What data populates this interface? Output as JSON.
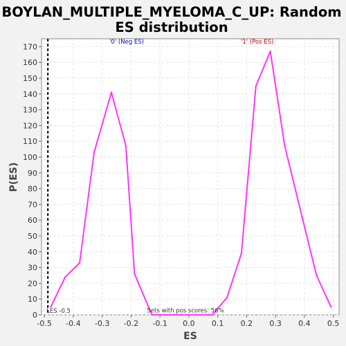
{
  "chart_data": {
    "type": "line",
    "title_line1": "BOYLAN_MULTIPLE_MYELOMA_C_UP: Random",
    "title_line2": "ES distribution",
    "xlabel": "ES",
    "ylabel": "P(ES)",
    "xlim": [
      -0.51,
      0.52
    ],
    "ylim": [
      0,
      175
    ],
    "xticks": [
      -0.5,
      -0.4,
      -0.3,
      -0.2,
      -0.1,
      0.0,
      0.1,
      0.2,
      0.3,
      0.4,
      0.5
    ],
    "xtick_labels": [
      "-0.5",
      "-0.4",
      "-0.3",
      "-0.2",
      "-0.1",
      "0.0",
      "0.1",
      "0.2",
      "0.3",
      "0.4",
      "0.5"
    ],
    "yticks": [
      0,
      10,
      20,
      30,
      40,
      50,
      60,
      70,
      80,
      90,
      100,
      110,
      120,
      130,
      140,
      150,
      160,
      170
    ],
    "grid": true,
    "series": [
      {
        "color": "#ff33ff",
        "x": [
          -0.478,
          -0.428,
          -0.378,
          -0.328,
          -0.268,
          -0.218,
          -0.188,
          -0.128,
          -0.078,
          -0.028,
          0.022,
          0.082,
          0.132,
          0.182,
          0.232,
          0.282,
          0.332,
          0.392,
          0.442,
          0.492
        ],
        "y": [
          5,
          24,
          33,
          103,
          141,
          107,
          26,
          0,
          0,
          0,
          0,
          0,
          11,
          39,
          145,
          167,
          107,
          62,
          25,
          5
        ]
      }
    ],
    "es_line": {
      "x": -0.488,
      "label": "LES -0.5"
    },
    "annotations": [
      {
        "text": "'0' (Neg ES)",
        "x": -0.275,
        "y": 172,
        "color": "#0000cc"
      },
      {
        "text": "'1' (Pos ES)",
        "x": 0.18,
        "y": 172,
        "color": "#cc0000"
      },
      {
        "text": "Sets with pos scores: 56%",
        "x": -0.145,
        "y": 1.5,
        "color": "#333333"
      }
    ]
  }
}
